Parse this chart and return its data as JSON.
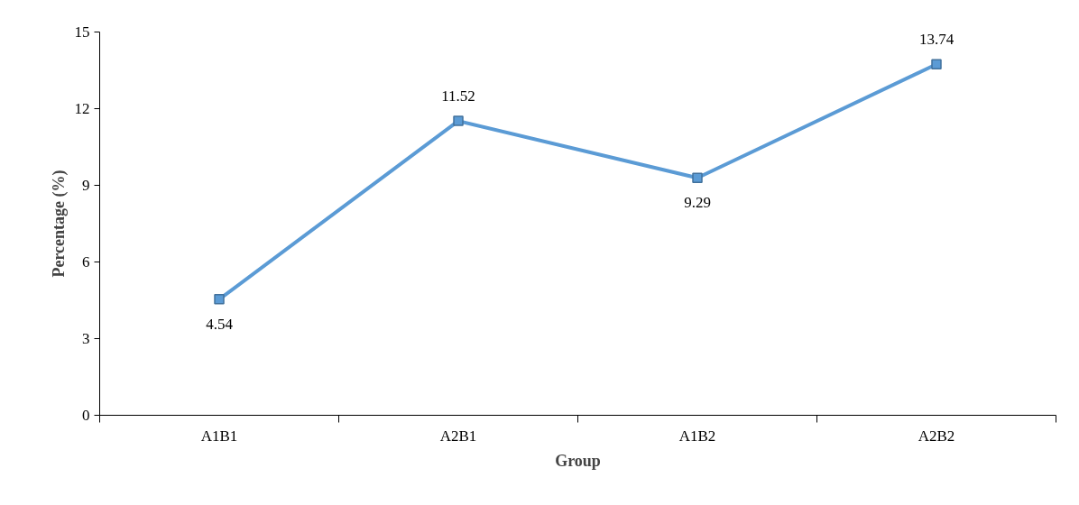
{
  "chart_data": {
    "type": "line",
    "xlabel": "Group",
    "ylabel": "Percentage (%)",
    "categories": [
      "A1B1",
      "A2B1",
      "A1B2",
      "A2B2"
    ],
    "series": [
      {
        "color": "#5b9bd5",
        "values": [
          4.54,
          11.52,
          9.29,
          13.74
        ]
      }
    ],
    "ylim": [
      0,
      15
    ],
    "yticks": [
      0,
      3,
      6,
      9,
      12,
      15
    ],
    "grid": false,
    "marker": "square",
    "line_style": "solid",
    "data_labels": true
  }
}
